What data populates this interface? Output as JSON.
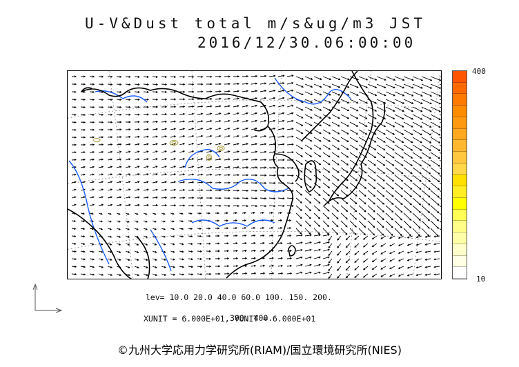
{
  "title": {
    "line1": "U-V&Dust total m/s&ug/m3 JST",
    "line2": "2016/12/30.06:00:00"
  },
  "colorbar": {
    "max_label": "400",
    "min_label": "10",
    "colors": [
      "#ff5500",
      "#ff6a00",
      "#ff7a00",
      "#ff8c00",
      "#ff9a10",
      "#ffa820",
      "#ffb830",
      "#ffc640",
      "#ffd94a",
      "#ffe000",
      "#ffee22",
      "#ffff00",
      "#ffff55",
      "#ffff88",
      "#ffffaa",
      "#ffffcc",
      "#ffffe6",
      "#ffffff"
    ]
  },
  "levels": {
    "line1": "lev= 10.0 20.0 40.0 60.0 100. 150. 200.",
    "line2": "300. 400."
  },
  "units": "XUNIT = 6.000E+01, YUNIT = 6.000E+01",
  "credit": "©九州大学応用力学研究所(RIAM)/国立環境研究所(NIES)",
  "map": {
    "coast_color": "#000000",
    "river_color": "#1a5cff",
    "grid_color": "#888888",
    "vector_color": "#000000",
    "contour_color": "#a89a3a"
  }
}
